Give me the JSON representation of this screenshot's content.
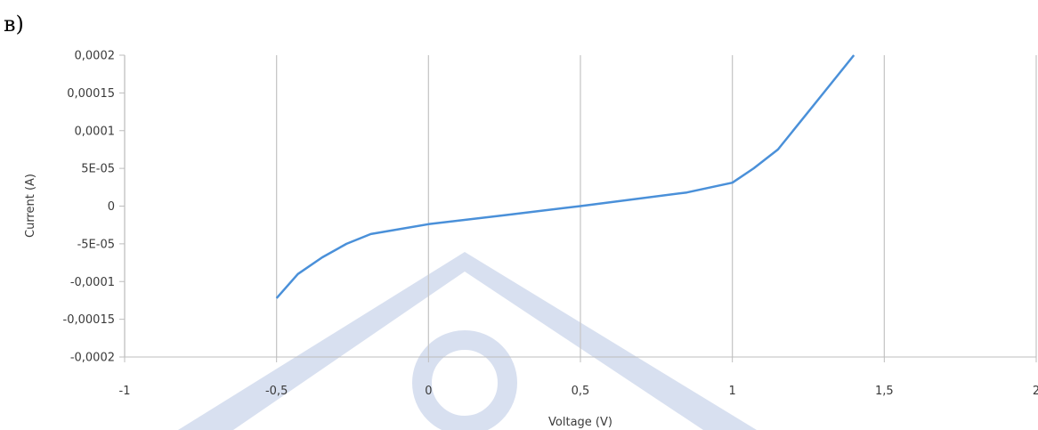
{
  "panel_label": "в)",
  "watermark_color": "#b8c7e3",
  "chart_data": {
    "type": "line",
    "title": "",
    "xlabel": "Voltage (V)",
    "ylabel": "Current (A)",
    "xlim": [
      -1,
      2
    ],
    "ylim": [
      -0.0002,
      0.0002
    ],
    "x_ticks": [
      -1,
      -0.5,
      0,
      0.5,
      1,
      1.5,
      2
    ],
    "x_tick_labels": [
      "-1",
      "-0,5",
      "0",
      "0,5",
      "1",
      "1,5",
      "2"
    ],
    "y_ticks": [
      0.0002,
      0.00015,
      0.0001,
      5e-05,
      0,
      -5e-05,
      -0.0001,
      -0.00015,
      -0.0002
    ],
    "y_tick_labels": [
      "0,0002",
      "0,00015",
      "0,0001",
      "5E-05",
      "0",
      "-5E-05",
      "-0,0001",
      "-0,00015",
      "-0,0002"
    ],
    "grid": "vertical",
    "legend": "none",
    "line_color": "#4a90d9",
    "grid_color": "#c8c8c8",
    "series": [
      {
        "x": [
          -0.5,
          -0.43,
          -0.35,
          -0.27,
          -0.19,
          0,
          0.25,
          0.5,
          0.85,
          1.0,
          1.07,
          1.15,
          1.3,
          1.4
        ],
        "y": [
          -0.000122,
          -9e-05,
          -6.8e-05,
          -5e-05,
          -3.7e-05,
          -2.4e-05,
          -1.2e-05,
          0.0,
          1.8e-05,
          3.1e-05,
          5e-05,
          7.5e-05,
          0.00015,
          0.0002
        ]
      }
    ]
  }
}
